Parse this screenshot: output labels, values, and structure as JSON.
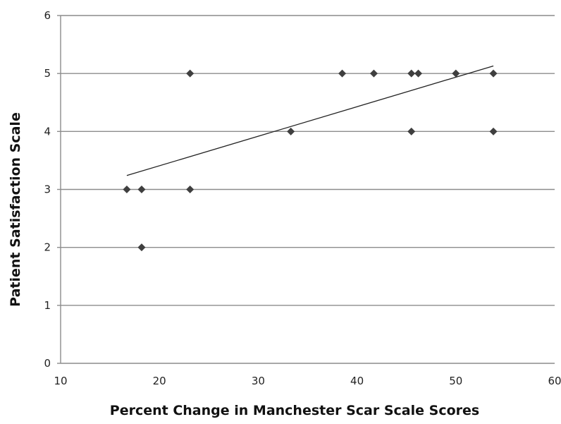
{
  "chart_data": {
    "type": "scatter",
    "title": "",
    "xlabel": "Percent Change in Manchester Scar Scale Scores",
    "ylabel": "Patient Satisfaction Scale",
    "xlim": [
      10,
      60
    ],
    "ylim": [
      0,
      6
    ],
    "xticks": [
      "10",
      "20",
      "30",
      "40",
      "50",
      "60"
    ],
    "yticks": [
      "0",
      "1",
      "2",
      "3",
      "4",
      "5",
      "6"
    ],
    "grid": "horizontal",
    "legend": "none",
    "marker": "diamond",
    "colors": {
      "marker": "#3f3f3f",
      "trendline": "#222222",
      "gridline": "#8c8c8c"
    },
    "series": [
      {
        "points": [
          {
            "x": 16.7,
            "y": 3
          },
          {
            "x": 18.2,
            "y": 3
          },
          {
            "x": 18.2,
            "y": 2
          },
          {
            "x": 23.1,
            "y": 3
          },
          {
            "x": 23.1,
            "y": 5
          },
          {
            "x": 33.3,
            "y": 4
          },
          {
            "x": 38.5,
            "y": 5
          },
          {
            "x": 41.7,
            "y": 5
          },
          {
            "x": 45.5,
            "y": 5
          },
          {
            "x": 45.5,
            "y": 4
          },
          {
            "x": 46.2,
            "y": 5
          },
          {
            "x": 50.0,
            "y": 5
          },
          {
            "x": 53.8,
            "y": 5
          },
          {
            "x": 53.8,
            "y": 4
          }
        ]
      }
    ],
    "trendline": {
      "type": "linear",
      "x": [
        16.7,
        53.8
      ],
      "y": [
        3.24,
        5.13
      ]
    }
  }
}
